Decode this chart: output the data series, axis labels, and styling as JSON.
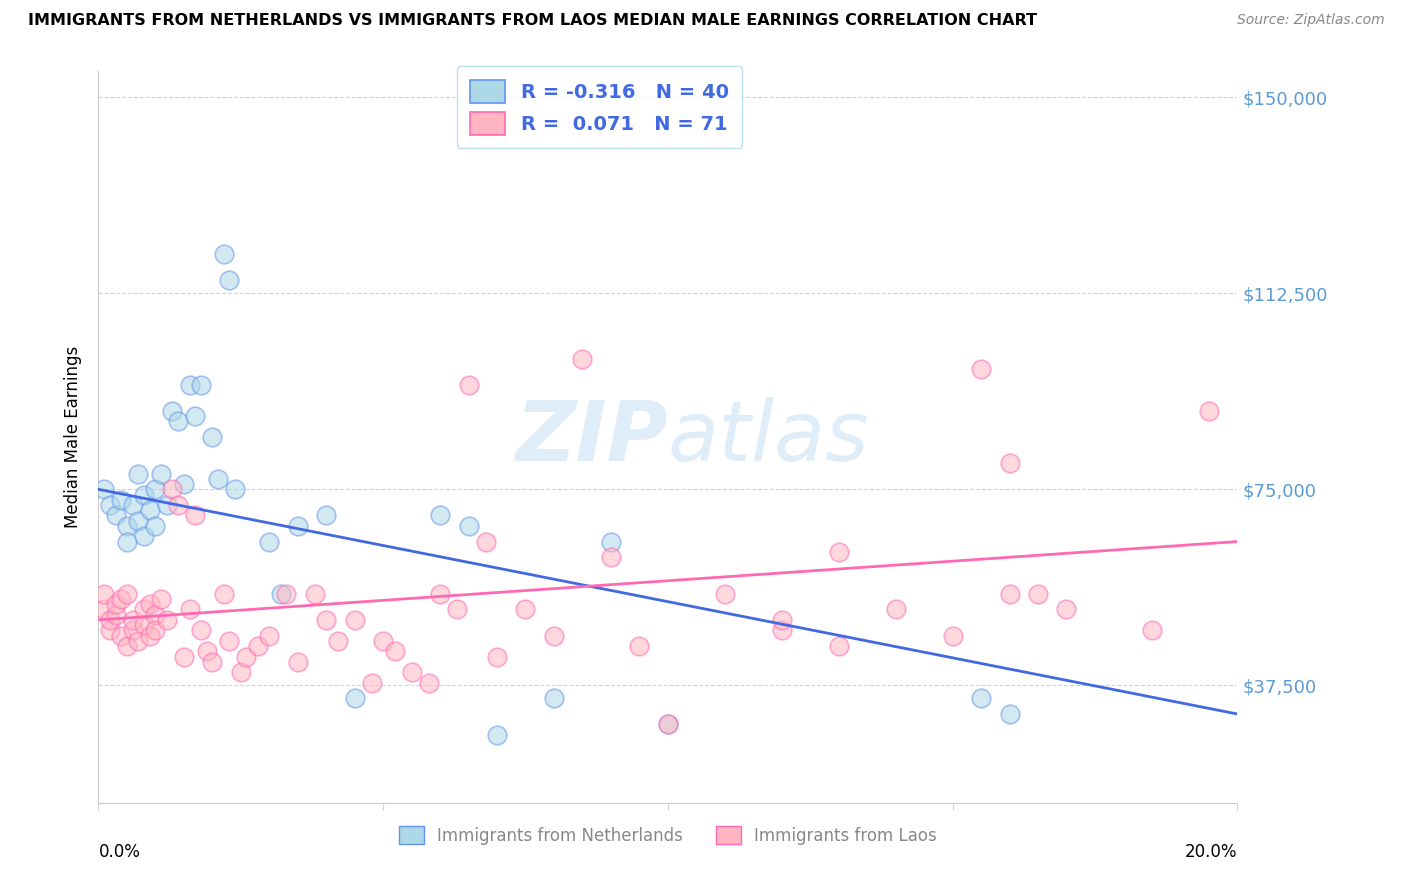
{
  "title": "IMMIGRANTS FROM NETHERLANDS VS IMMIGRANTS FROM LAOS MEDIAN MALE EARNINGS CORRELATION CHART",
  "source": "Source: ZipAtlas.com",
  "ylabel": "Median Male Earnings",
  "ytick_labels": [
    "$37,500",
    "$75,000",
    "$112,500",
    "$150,000"
  ],
  "ytick_values": [
    37500,
    75000,
    112500,
    150000
  ],
  "ylim": [
    15000,
    155000
  ],
  "xlim": [
    0.0,
    0.2
  ],
  "xtick_positions": [
    0.0,
    0.05,
    0.1,
    0.15,
    0.2
  ],
  "watermark_text": "ZIPatlas",
  "netherlands_color": "#ADD8E6",
  "laos_color": "#FFB6C1",
  "netherlands_edge_color": "#6495ED",
  "laos_edge_color": "#FF69B4",
  "netherlands_line_color": "#4169E1",
  "laos_line_color": "#FF69B4",
  "nl_legend_label_r": "R = -0.316",
  "nl_legend_label_n": "N = 40",
  "laos_legend_label_r": "R =  0.071",
  "laos_legend_label_n": "N = 71",
  "nl_line_x0": 0.0,
  "nl_line_y0": 75000,
  "nl_line_x1": 0.2,
  "nl_line_y1": 32000,
  "laos_line_x0": 0.0,
  "laos_line_y0": 50000,
  "laos_line_x1": 0.2,
  "laos_line_y1": 65000,
  "netherlands_scatter_x": [
    0.001,
    0.002,
    0.003,
    0.004,
    0.005,
    0.005,
    0.006,
    0.007,
    0.007,
    0.008,
    0.008,
    0.009,
    0.01,
    0.01,
    0.011,
    0.012,
    0.013,
    0.014,
    0.015,
    0.016,
    0.017,
    0.018,
    0.02,
    0.021,
    0.022,
    0.023,
    0.024,
    0.03,
    0.032,
    0.035,
    0.04,
    0.045,
    0.06,
    0.065,
    0.07,
    0.08,
    0.09,
    0.1,
    0.155,
    0.16
  ],
  "netherlands_scatter_y": [
    75000,
    72000,
    70000,
    73000,
    68000,
    65000,
    72000,
    78000,
    69000,
    74000,
    66000,
    71000,
    68000,
    75000,
    78000,
    72000,
    90000,
    88000,
    76000,
    95000,
    89000,
    95000,
    85000,
    77000,
    120000,
    115000,
    75000,
    65000,
    55000,
    68000,
    70000,
    35000,
    70000,
    68000,
    28000,
    35000,
    65000,
    30000,
    35000,
    32000
  ],
  "laos_scatter_x": [
    0.001,
    0.001,
    0.002,
    0.002,
    0.003,
    0.003,
    0.004,
    0.004,
    0.005,
    0.005,
    0.006,
    0.006,
    0.007,
    0.008,
    0.008,
    0.009,
    0.009,
    0.01,
    0.01,
    0.011,
    0.012,
    0.013,
    0.014,
    0.015,
    0.016,
    0.017,
    0.018,
    0.019,
    0.02,
    0.022,
    0.023,
    0.025,
    0.026,
    0.028,
    0.03,
    0.033,
    0.035,
    0.038,
    0.04,
    0.042,
    0.045,
    0.048,
    0.05,
    0.052,
    0.055,
    0.058,
    0.06,
    0.063,
    0.065,
    0.068,
    0.07,
    0.075,
    0.08,
    0.085,
    0.09,
    0.095,
    0.1,
    0.11,
    0.12,
    0.13,
    0.14,
    0.15,
    0.155,
    0.16,
    0.165,
    0.17,
    0.185,
    0.195,
    0.16,
    0.12,
    0.13
  ],
  "laos_scatter_y": [
    52000,
    55000,
    48000,
    50000,
    51000,
    53000,
    47000,
    54000,
    45000,
    55000,
    48000,
    50000,
    46000,
    52000,
    49000,
    53000,
    47000,
    51000,
    48000,
    54000,
    50000,
    75000,
    72000,
    43000,
    52000,
    70000,
    48000,
    44000,
    42000,
    55000,
    46000,
    40000,
    43000,
    45000,
    47000,
    55000,
    42000,
    55000,
    50000,
    46000,
    50000,
    38000,
    46000,
    44000,
    40000,
    38000,
    55000,
    52000,
    95000,
    65000,
    43000,
    52000,
    47000,
    100000,
    62000,
    45000,
    30000,
    55000,
    48000,
    63000,
    52000,
    47000,
    98000,
    80000,
    55000,
    52000,
    48000,
    90000,
    55000,
    50000,
    45000
  ]
}
